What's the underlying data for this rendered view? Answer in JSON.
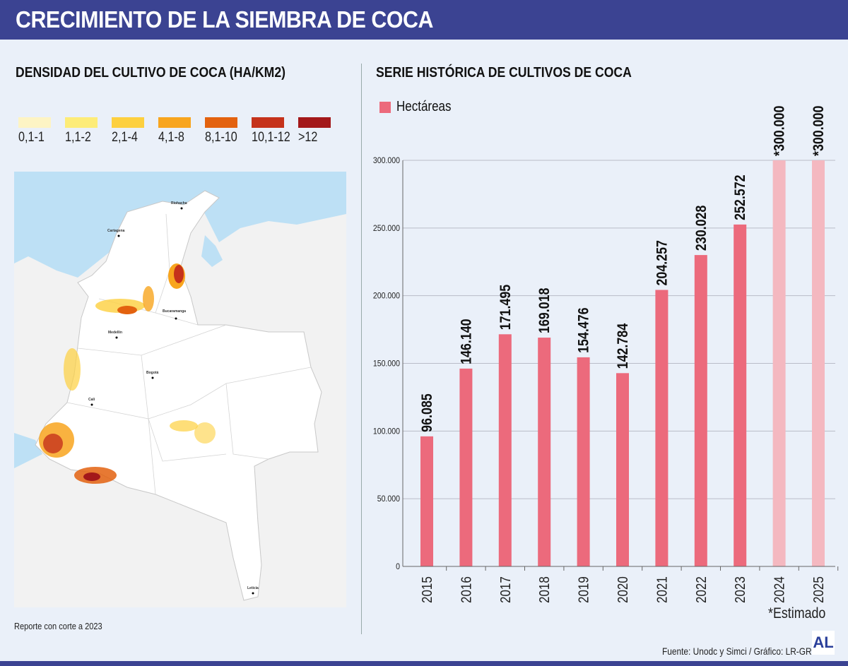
{
  "header": {
    "title": "CRECIMIENTO DE LA SIEMBRA DE COCA"
  },
  "map_panel": {
    "title": "DENSIDAD DEL CULTIVO DE COCA (HA/KM2)",
    "legend": [
      {
        "label": "0,1-1",
        "color": "#fdf4c4"
      },
      {
        "label": "1,1-2",
        "color": "#fdec78"
      },
      {
        "label": "2,1-4",
        "color": "#fdd03f"
      },
      {
        "label": "4,1-8",
        "color": "#f8a51e"
      },
      {
        "label": "8,1-10",
        "color": "#e3620f"
      },
      {
        "label": "10,1-12",
        "color": "#c5321b"
      },
      {
        "label": ">12",
        "color": "#a3181a"
      }
    ],
    "cities": [
      "Riohacha",
      "Cartagena",
      "Medellín",
      "Bucaramanga",
      "Bogotá",
      "Cali",
      "Leticia"
    ],
    "note": "Reporte con corte a 2023"
  },
  "chart_data": {
    "type": "bar",
    "title": "SERIE HISTÓRICA DE CULTIVOS DE COCA",
    "categories": [
      "2015",
      "2016",
      "2017",
      "2018",
      "2019",
      "2020",
      "2021",
      "2022",
      "2023",
      "2024",
      "2025"
    ],
    "series": [
      {
        "name": "Hectáreas",
        "values": [
          96085,
          146140,
          171495,
          169018,
          154476,
          142784,
          204257,
          230028,
          252572,
          300000,
          300000
        ]
      }
    ],
    "data_labels": [
      "96.085",
      "146.140",
      "171.495",
      "169.018",
      "154.476",
      "142.784",
      "204.257",
      "230.028",
      "252.572",
      "*300.000",
      "*300.000"
    ],
    "estimated": [
      false,
      false,
      false,
      false,
      false,
      false,
      false,
      false,
      false,
      true,
      true
    ],
    "ylim": [
      0,
      300000
    ],
    "yticks": [
      0,
      50000,
      100000,
      150000,
      200000,
      250000,
      300000
    ],
    "ytick_labels": [
      "0",
      "50.000",
      "100.000",
      "150.000",
      "200.000",
      "250.000",
      "300.000"
    ],
    "grid": true,
    "legend_position": "top-left",
    "colors": {
      "actual": "#ec6a7c",
      "estimated": "#f4b8c0"
    },
    "annotation": "*Estimado"
  },
  "footer": {
    "source": "Fuente: Unodc y Simci / Gráfico: LR-GR",
    "logo": "AL"
  }
}
